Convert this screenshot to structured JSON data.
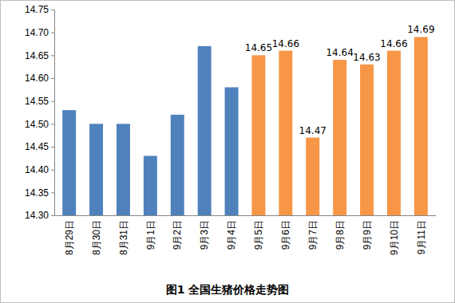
{
  "chart_data": {
    "type": "bar",
    "title": "图1 全国生猪价格走势图",
    "categories": [
      "8月29日",
      "8月30日",
      "8月31日",
      "9月1日",
      "9月2日",
      "9月3日",
      "9月4日",
      "9月5日",
      "9月6日",
      "9月7日",
      "9月8日",
      "9月9日",
      "9月10日",
      "9月11日"
    ],
    "values": [
      14.53,
      14.5,
      14.5,
      14.43,
      14.52,
      14.67,
      14.58,
      14.65,
      14.66,
      14.47,
      14.64,
      14.63,
      14.66,
      14.69
    ],
    "value_labels": [
      null,
      null,
      null,
      null,
      null,
      null,
      null,
      "14.65",
      "14.66",
      "14.47",
      "14.64",
      "14.63",
      "14.66",
      "14.69"
    ],
    "colors": [
      "#4f81bd",
      "#4f81bd",
      "#4f81bd",
      "#4f81bd",
      "#4f81bd",
      "#4f81bd",
      "#4f81bd",
      "#f79646",
      "#f79646",
      "#f79646",
      "#f79646",
      "#f79646",
      "#f79646",
      "#f79646"
    ],
    "data_labels": true,
    "ylim": [
      14.3,
      14.75
    ],
    "yticks": [
      {
        "value": 14.3,
        "label": "14.30"
      },
      14.35,
      {
        "value": 14.4,
        "label": "14.40"
      },
      14.45,
      {
        "value": 14.5,
        "label": "14.50"
      },
      14.55,
      {
        "value": 14.6,
        "label": "14.60"
      },
      14.65,
      {
        "value": 14.7,
        "label": "14.70"
      },
      14.75
    ],
    "grid": false
  }
}
